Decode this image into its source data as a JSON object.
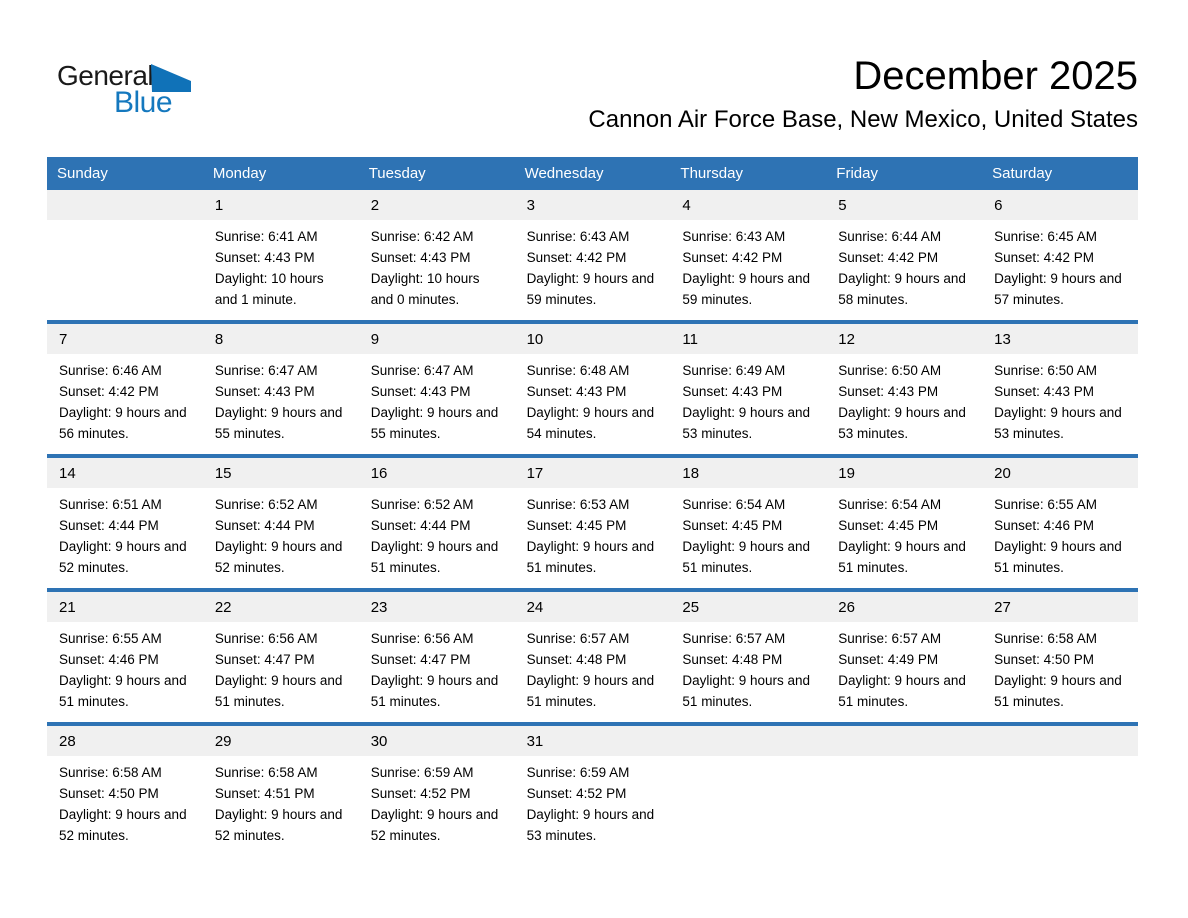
{
  "colors": {
    "header_blue": "#2E73B4",
    "band_gray": "#F0F0F0",
    "logo_blue": "#1478BE",
    "logo_black": "#1A1A1A"
  },
  "logo": {
    "word1": "General",
    "word2": "Blue"
  },
  "header": {
    "title": "December 2025",
    "subtitle": "Cannon Air Force Base, New Mexico, United States"
  },
  "calendar": {
    "weekdays": [
      "Sunday",
      "Monday",
      "Tuesday",
      "Wednesday",
      "Thursday",
      "Friday",
      "Saturday"
    ],
    "weeks": [
      [
        null,
        {
          "day": "1",
          "sunrise": "Sunrise: 6:41 AM",
          "sunset": "Sunset: 4:43 PM",
          "daylight": "Daylight: 10 hours and 1 minute."
        },
        {
          "day": "2",
          "sunrise": "Sunrise: 6:42 AM",
          "sunset": "Sunset: 4:43 PM",
          "daylight": "Daylight: 10 hours and 0 minutes."
        },
        {
          "day": "3",
          "sunrise": "Sunrise: 6:43 AM",
          "sunset": "Sunset: 4:42 PM",
          "daylight": "Daylight: 9 hours and 59 minutes."
        },
        {
          "day": "4",
          "sunrise": "Sunrise: 6:43 AM",
          "sunset": "Sunset: 4:42 PM",
          "daylight": "Daylight: 9 hours and 59 minutes."
        },
        {
          "day": "5",
          "sunrise": "Sunrise: 6:44 AM",
          "sunset": "Sunset: 4:42 PM",
          "daylight": "Daylight: 9 hours and 58 minutes."
        },
        {
          "day": "6",
          "sunrise": "Sunrise: 6:45 AM",
          "sunset": "Sunset: 4:42 PM",
          "daylight": "Daylight: 9 hours and 57 minutes."
        }
      ],
      [
        {
          "day": "7",
          "sunrise": "Sunrise: 6:46 AM",
          "sunset": "Sunset: 4:42 PM",
          "daylight": "Daylight: 9 hours and 56 minutes."
        },
        {
          "day": "8",
          "sunrise": "Sunrise: 6:47 AM",
          "sunset": "Sunset: 4:43 PM",
          "daylight": "Daylight: 9 hours and 55 minutes."
        },
        {
          "day": "9",
          "sunrise": "Sunrise: 6:47 AM",
          "sunset": "Sunset: 4:43 PM",
          "daylight": "Daylight: 9 hours and 55 minutes."
        },
        {
          "day": "10",
          "sunrise": "Sunrise: 6:48 AM",
          "sunset": "Sunset: 4:43 PM",
          "daylight": "Daylight: 9 hours and 54 minutes."
        },
        {
          "day": "11",
          "sunrise": "Sunrise: 6:49 AM",
          "sunset": "Sunset: 4:43 PM",
          "daylight": "Daylight: 9 hours and 53 minutes."
        },
        {
          "day": "12",
          "sunrise": "Sunrise: 6:50 AM",
          "sunset": "Sunset: 4:43 PM",
          "daylight": "Daylight: 9 hours and 53 minutes."
        },
        {
          "day": "13",
          "sunrise": "Sunrise: 6:50 AM",
          "sunset": "Sunset: 4:43 PM",
          "daylight": "Daylight: 9 hours and 53 minutes."
        }
      ],
      [
        {
          "day": "14",
          "sunrise": "Sunrise: 6:51 AM",
          "sunset": "Sunset: 4:44 PM",
          "daylight": "Daylight: 9 hours and 52 minutes."
        },
        {
          "day": "15",
          "sunrise": "Sunrise: 6:52 AM",
          "sunset": "Sunset: 4:44 PM",
          "daylight": "Daylight: 9 hours and 52 minutes."
        },
        {
          "day": "16",
          "sunrise": "Sunrise: 6:52 AM",
          "sunset": "Sunset: 4:44 PM",
          "daylight": "Daylight: 9 hours and 51 minutes."
        },
        {
          "day": "17",
          "sunrise": "Sunrise: 6:53 AM",
          "sunset": "Sunset: 4:45 PM",
          "daylight": "Daylight: 9 hours and 51 minutes."
        },
        {
          "day": "18",
          "sunrise": "Sunrise: 6:54 AM",
          "sunset": "Sunset: 4:45 PM",
          "daylight": "Daylight: 9 hours and 51 minutes."
        },
        {
          "day": "19",
          "sunrise": "Sunrise: 6:54 AM",
          "sunset": "Sunset: 4:45 PM",
          "daylight": "Daylight: 9 hours and 51 minutes."
        },
        {
          "day": "20",
          "sunrise": "Sunrise: 6:55 AM",
          "sunset": "Sunset: 4:46 PM",
          "daylight": "Daylight: 9 hours and 51 minutes."
        }
      ],
      [
        {
          "day": "21",
          "sunrise": "Sunrise: 6:55 AM",
          "sunset": "Sunset: 4:46 PM",
          "daylight": "Daylight: 9 hours and 51 minutes."
        },
        {
          "day": "22",
          "sunrise": "Sunrise: 6:56 AM",
          "sunset": "Sunset: 4:47 PM",
          "daylight": "Daylight: 9 hours and 51 minutes."
        },
        {
          "day": "23",
          "sunrise": "Sunrise: 6:56 AM",
          "sunset": "Sunset: 4:47 PM",
          "daylight": "Daylight: 9 hours and 51 minutes."
        },
        {
          "day": "24",
          "sunrise": "Sunrise: 6:57 AM",
          "sunset": "Sunset: 4:48 PM",
          "daylight": "Daylight: 9 hours and 51 minutes."
        },
        {
          "day": "25",
          "sunrise": "Sunrise: 6:57 AM",
          "sunset": "Sunset: 4:48 PM",
          "daylight": "Daylight: 9 hours and 51 minutes."
        },
        {
          "day": "26",
          "sunrise": "Sunrise: 6:57 AM",
          "sunset": "Sunset: 4:49 PM",
          "daylight": "Daylight: 9 hours and 51 minutes."
        },
        {
          "day": "27",
          "sunrise": "Sunrise: 6:58 AM",
          "sunset": "Sunset: 4:50 PM",
          "daylight": "Daylight: 9 hours and 51 minutes."
        }
      ],
      [
        {
          "day": "28",
          "sunrise": "Sunrise: 6:58 AM",
          "sunset": "Sunset: 4:50 PM",
          "daylight": "Daylight: 9 hours and 52 minutes."
        },
        {
          "day": "29",
          "sunrise": "Sunrise: 6:58 AM",
          "sunset": "Sunset: 4:51 PM",
          "daylight": "Daylight: 9 hours and 52 minutes."
        },
        {
          "day": "30",
          "sunrise": "Sunrise: 6:59 AM",
          "sunset": "Sunset: 4:52 PM",
          "daylight": "Daylight: 9 hours and 52 minutes."
        },
        {
          "day": "31",
          "sunrise": "Sunrise: 6:59 AM",
          "sunset": "Sunset: 4:52 PM",
          "daylight": "Daylight: 9 hours and 53 minutes."
        },
        null,
        null,
        null
      ]
    ]
  }
}
